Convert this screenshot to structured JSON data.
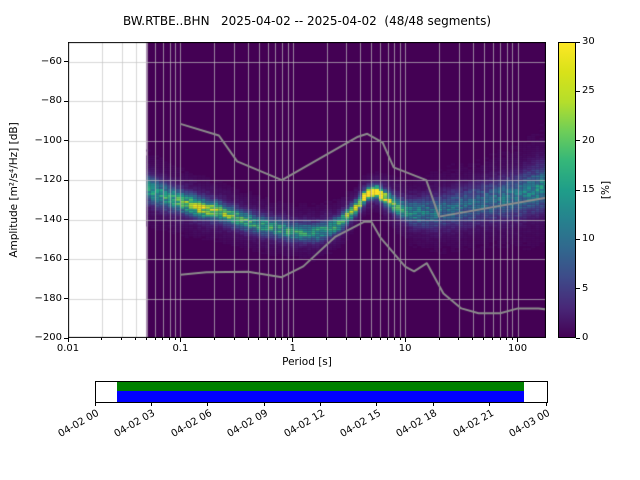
{
  "chart_data": {
    "type": "heatmap",
    "subtype": "ppsd-probability-density",
    "title": "BW.RTBE..BHN   2025-04-02 -- 2025-04-02  (48/48 segments)",
    "xlabel": "Period [s]",
    "ylabel": "Amplitude [m²/s⁴/Hz] [dB]",
    "xscale": "log",
    "xlim": [
      0.01,
      179
    ],
    "ylim": [
      -200,
      -50
    ],
    "grid": true,
    "x_ticks": [
      {
        "value": 0.01,
        "label": "0.01"
      },
      {
        "value": 0.1,
        "label": "0.1"
      },
      {
        "value": 1,
        "label": "1"
      },
      {
        "value": 10,
        "label": "10"
      },
      {
        "value": 100,
        "label": "100"
      }
    ],
    "y_ticks": [
      {
        "value": -60,
        "label": "−60"
      },
      {
        "value": -80,
        "label": "−80"
      },
      {
        "value": -100,
        "label": "−100"
      },
      {
        "value": -120,
        "label": "−120"
      },
      {
        "value": -140,
        "label": "−140"
      },
      {
        "value": -160,
        "label": "−160"
      },
      {
        "value": -180,
        "label": "−180"
      },
      {
        "value": -200,
        "label": "−200"
      }
    ],
    "colorbar": {
      "label": "[%]",
      "min": 0,
      "max": 30,
      "tick_values": [
        0,
        5,
        10,
        15,
        20,
        25,
        30
      ],
      "colormap": "viridis"
    },
    "viridis_stops": [
      [
        0.0,
        "#440154"
      ],
      [
        0.1,
        "#482878"
      ],
      [
        0.2,
        "#3e4a89"
      ],
      [
        0.3,
        "#31688e"
      ],
      [
        0.4,
        "#26828e"
      ],
      [
        0.5,
        "#1f9e89"
      ],
      [
        0.6,
        "#35b779"
      ],
      [
        0.7,
        "#6ece58"
      ],
      [
        0.8,
        "#b5de2b"
      ],
      [
        0.9,
        "#d8e219"
      ],
      [
        1.0,
        "#fde725"
      ]
    ],
    "background_color_zero": "#440154",
    "data_period_range": [
      0.05,
      179
    ],
    "period_step_log10": 0.0376,
    "db_bin_width": 1,
    "ppsd_band": [
      {
        "period": 0.05,
        "center_db": -124.0,
        "spread_db": 4.5,
        "peak_percent": 12
      },
      {
        "period": 0.07,
        "center_db": -128.0,
        "spread_db": 4.0,
        "peak_percent": 14
      },
      {
        "period": 0.1,
        "center_db": -131.0,
        "spread_db": 3.5,
        "peak_percent": 16
      },
      {
        "period": 0.15,
        "center_db": -134.0,
        "spread_db": 3.0,
        "peak_percent": 23
      },
      {
        "period": 0.22,
        "center_db": -136.0,
        "spread_db": 3.0,
        "peak_percent": 20
      },
      {
        "period": 0.35,
        "center_db": -140.0,
        "spread_db": 3.0,
        "peak_percent": 16
      },
      {
        "period": 0.6,
        "center_db": -143.5,
        "spread_db": 3.0,
        "peak_percent": 15
      },
      {
        "period": 1.0,
        "center_db": -146.0,
        "spread_db": 3.0,
        "peak_percent": 15
      },
      {
        "period": 1.6,
        "center_db": -146.5,
        "spread_db": 3.0,
        "peak_percent": 14
      },
      {
        "period": 2.5,
        "center_db": -143.0,
        "spread_db": 2.8,
        "peak_percent": 15
      },
      {
        "period": 3.5,
        "center_db": -135.0,
        "spread_db": 2.2,
        "peak_percent": 22
      },
      {
        "period": 4.5,
        "center_db": -127.5,
        "spread_db": 1.8,
        "peak_percent": 30
      },
      {
        "period": 5.5,
        "center_db": -125.5,
        "spread_db": 1.8,
        "peak_percent": 30
      },
      {
        "period": 7.0,
        "center_db": -130.0,
        "spread_db": 2.5,
        "peak_percent": 22
      },
      {
        "period": 9.0,
        "center_db": -134.5,
        "spread_db": 3.0,
        "peak_percent": 16
      },
      {
        "period": 12,
        "center_db": -136.5,
        "spread_db": 4.0,
        "peak_percent": 12
      },
      {
        "period": 18,
        "center_db": -136.5,
        "spread_db": 5.0,
        "peak_percent": 10
      },
      {
        "period": 30,
        "center_db": -134.0,
        "spread_db": 5.5,
        "peak_percent": 9
      },
      {
        "period": 55,
        "center_db": -131.0,
        "spread_db": 6.0,
        "peak_percent": 9
      },
      {
        "period": 100,
        "center_db": -128.0,
        "spread_db": 6.5,
        "peak_percent": 10
      },
      {
        "period": 179,
        "center_db": -123.0,
        "spread_db": 7.0,
        "peak_percent": 12
      }
    ],
    "noise_models": {
      "color": "#8c8c8c",
      "high_noise_model": [
        [
          0.1,
          -91.5
        ],
        [
          0.22,
          -97.4
        ],
        [
          0.32,
          -110.5
        ],
        [
          0.8,
          -120.0
        ],
        [
          3.8,
          -98.0
        ],
        [
          4.6,
          -96.5
        ],
        [
          6.3,
          -101.0
        ],
        [
          7.9,
          -113.5
        ],
        [
          15.4,
          -120.0
        ],
        [
          20.0,
          -138.5
        ],
        [
          354.8,
          -126.0
        ]
      ],
      "low_noise_model": [
        [
          0.1,
          -168.0
        ],
        [
          0.17,
          -166.7
        ],
        [
          0.4,
          -166.4
        ],
        [
          0.8,
          -169.2
        ],
        [
          1.24,
          -163.7
        ],
        [
          2.4,
          -148.6
        ],
        [
          4.3,
          -141.1
        ],
        [
          5.0,
          -141.1
        ],
        [
          6.0,
          -149.0
        ],
        [
          10.0,
          -163.8
        ],
        [
          12.0,
          -166.2
        ],
        [
          15.6,
          -162.1
        ],
        [
          21.9,
          -177.5
        ],
        [
          31.6,
          -185.0
        ],
        [
          45.0,
          -187.5
        ],
        [
          70.0,
          -187.5
        ],
        [
          101.0,
          -185.0
        ],
        [
          154.0,
          -185.0
        ],
        [
          328.0,
          -187.5
        ]
      ]
    }
  },
  "timeline": {
    "tick_labels": [
      "04-02 00",
      "04-02 03",
      "04-02 06",
      "04-02 09",
      "04-02 12",
      "04-02 15",
      "04-02 18",
      "04-02 21",
      "04-03 00"
    ],
    "coverage_green": {
      "start_frac": 0.047,
      "end_frac": 0.949,
      "color": "#008000"
    },
    "coverage_blue": {
      "start_frac": 0.047,
      "end_frac": 0.949,
      "color": "#0000ff"
    }
  }
}
